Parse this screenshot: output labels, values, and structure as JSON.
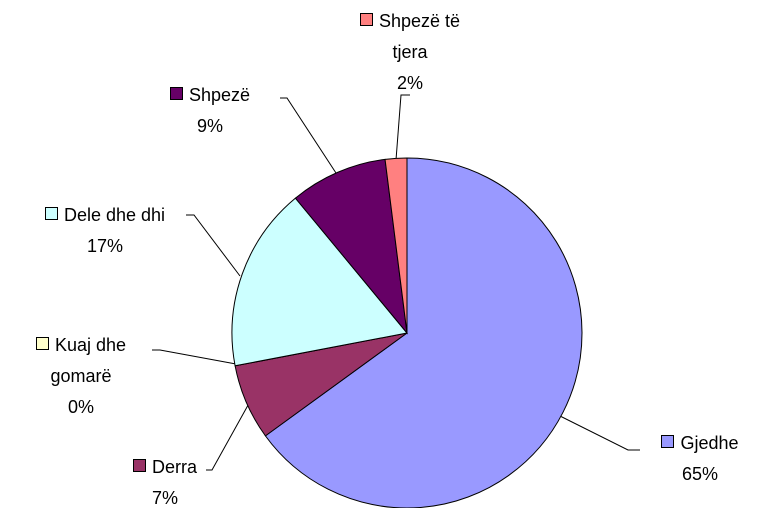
{
  "chart_data": {
    "type": "pie",
    "categories": [
      "Gjedhe",
      "Derra",
      "Kuaj dhe gomarë",
      "Dele dhe dhi",
      "Shpezë",
      "Shpezë të tjera"
    ],
    "values": [
      65,
      7,
      0,
      17,
      9,
      2
    ],
    "value_labels": [
      "65%",
      "7%",
      "0%",
      "17%",
      "9%",
      "2%"
    ],
    "colors": [
      "#9999ff",
      "#993366",
      "#ffffcc",
      "#ccffff",
      "#660066",
      "#ff8080"
    ]
  }
}
